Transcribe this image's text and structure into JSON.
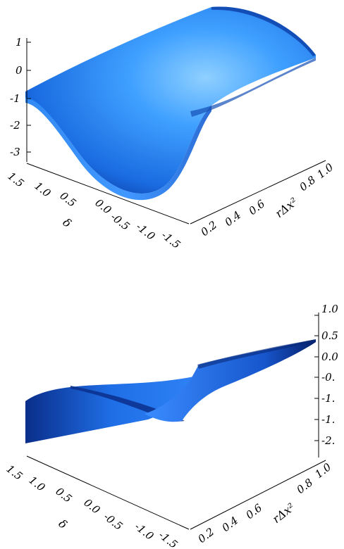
{
  "chart_data": [
    {
      "type": "surface",
      "title": "",
      "axes": {
        "x": {
          "label": "rΔx²",
          "range": [
            0,
            1.0
          ],
          "ticks": [
            "0.2",
            "0.4",
            "0.6",
            "0.8",
            "1.0"
          ]
        },
        "y": {
          "label": "δ",
          "range": [
            -1.5,
            1.5
          ],
          "ticks": [
            "1.5",
            "1.0",
            "0.5",
            "0.0",
            "-0.5",
            "-1.0",
            "-1.5"
          ]
        },
        "z": {
          "label": "",
          "range": [
            -3,
            1
          ],
          "ticks": [
            "1",
            "0",
            "-1",
            "-2",
            "-3"
          ]
        }
      },
      "surface_color": "#1e7ff0",
      "grid": false
    },
    {
      "type": "surface",
      "title": "",
      "axes": {
        "x": {
          "label": "rΔx²",
          "range": [
            0,
            1.0
          ],
          "ticks": [
            "0.2",
            "0.4",
            "0.6",
            "0.8",
            "1.0"
          ]
        },
        "y": {
          "label": "δ",
          "range": [
            -1.5,
            1.5
          ],
          "ticks": [
            "1.5",
            "1.0",
            "0.5",
            "0.0",
            "-0.5",
            "-1.0",
            "-1.5"
          ]
        },
        "z": {
          "label": "",
          "range": [
            -2.0,
            1.0
          ],
          "ticks": [
            "1.0",
            "0.5",
            "0.0",
            "-0.",
            "-1.",
            "-1.",
            "-2."
          ]
        }
      },
      "surface_color": "#1a6be0",
      "grid": false
    }
  ]
}
